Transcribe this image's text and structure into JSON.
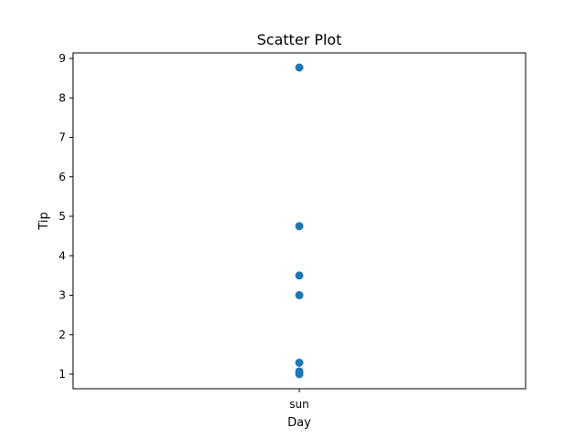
{
  "chart_data": {
    "type": "scatter",
    "title": "Scatter Plot",
    "xlabel": "Day",
    "ylabel": "Tip",
    "x_categories": [
      "sun"
    ],
    "y_ticks": [
      1,
      2,
      3,
      4,
      5,
      6,
      7,
      8,
      9
    ],
    "ylim": [
      0.63,
      9.14
    ],
    "grid": false,
    "series": [
      {
        "color": "#1f77b4",
        "points": [
          {
            "x": "sun",
            "y": 8.77
          },
          {
            "x": "sun",
            "y": 4.75
          },
          {
            "x": "sun",
            "y": 3.5
          },
          {
            "x": "sun",
            "y": 3.0
          },
          {
            "x": "sun",
            "y": 1.29
          },
          {
            "x": "sun",
            "y": 1.07
          },
          {
            "x": "sun",
            "y": 1.0
          }
        ]
      }
    ]
  }
}
